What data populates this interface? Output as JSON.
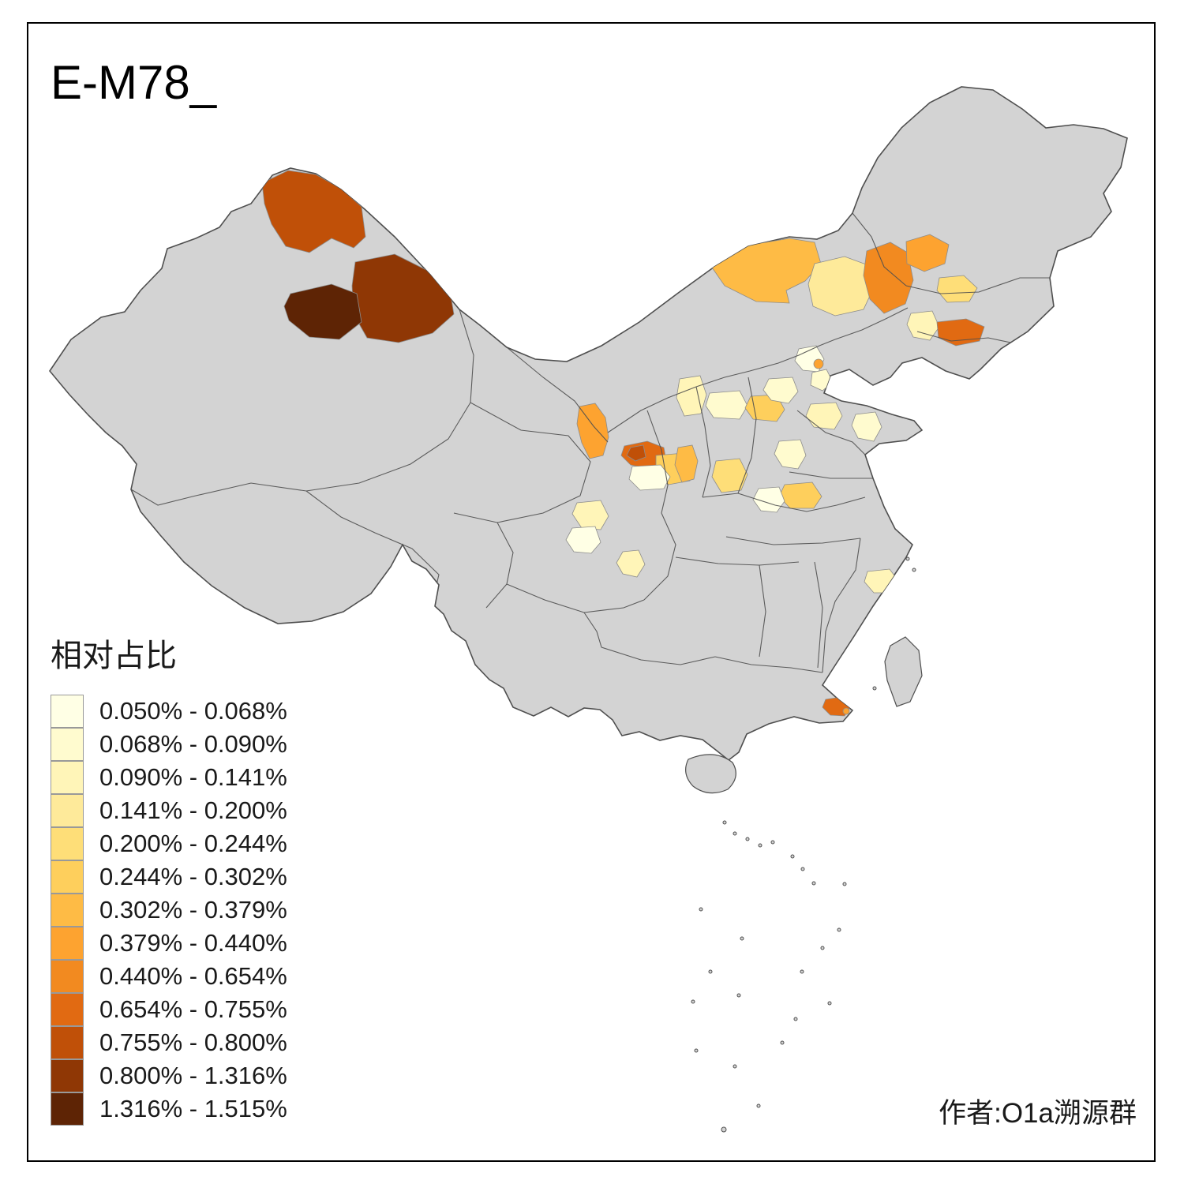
{
  "title": "E-M78_",
  "author": "作者:O1a溯源群",
  "legend": {
    "title": "相对占比",
    "bins": [
      {
        "label": "0.050% - 0.068%",
        "color": "#FFFFE5"
      },
      {
        "label": "0.068% - 0.090%",
        "color": "#FFFBCF"
      },
      {
        "label": "0.090% - 0.141%",
        "color": "#FFF5B8"
      },
      {
        "label": "0.141% - 0.200%",
        "color": "#FEEA9A"
      },
      {
        "label": "0.200% - 0.244%",
        "color": "#FEDE78"
      },
      {
        "label": "0.244% - 0.302%",
        "color": "#FECF5C"
      },
      {
        "label": "0.302% - 0.379%",
        "color": "#FEBB45"
      },
      {
        "label": "0.379% - 0.440%",
        "color": "#FDA330"
      },
      {
        "label": "0.440% - 0.654%",
        "color": "#F28A20"
      },
      {
        "label": "0.654% - 0.755%",
        "color": "#E16A12"
      },
      {
        "label": "0.755% - 0.800%",
        "color": "#C05008"
      },
      {
        "label": "0.800% - 1.316%",
        "color": "#8F3705"
      },
      {
        "label": "1.316% - 1.515%",
        "color": "#5E2405"
      }
    ]
  },
  "map": {
    "base_fill": "#d3d3d3",
    "border_color": "#4f4f4f",
    "region_stroke": "#8c8c8c",
    "frame_color": "#000000",
    "background": "#ffffff",
    "region_bins": {
      "r01": 10,
      "r02": 11,
      "r03": 12,
      "r04": 6,
      "r05": 3,
      "r06": 8,
      "r07": 7,
      "r08": 4,
      "r09": 2,
      "r10": 9,
      "r11": 0,
      "r12": 1,
      "r13": 7,
      "r14": 2,
      "r15": 1,
      "r16": 5,
      "r17": 1,
      "r18": 2,
      "r19": 1,
      "r20": 7,
      "r21": 9,
      "r22": 10,
      "r23": 5,
      "r24": 0,
      "r25": 6,
      "r26": 4,
      "r27": 1,
      "r28": 5,
      "r29": 0,
      "r30": 2,
      "r31": 0,
      "r32": 2,
      "r33": 2,
      "r35": 6,
      "r34": 9,
      "r36": 7
    }
  }
}
